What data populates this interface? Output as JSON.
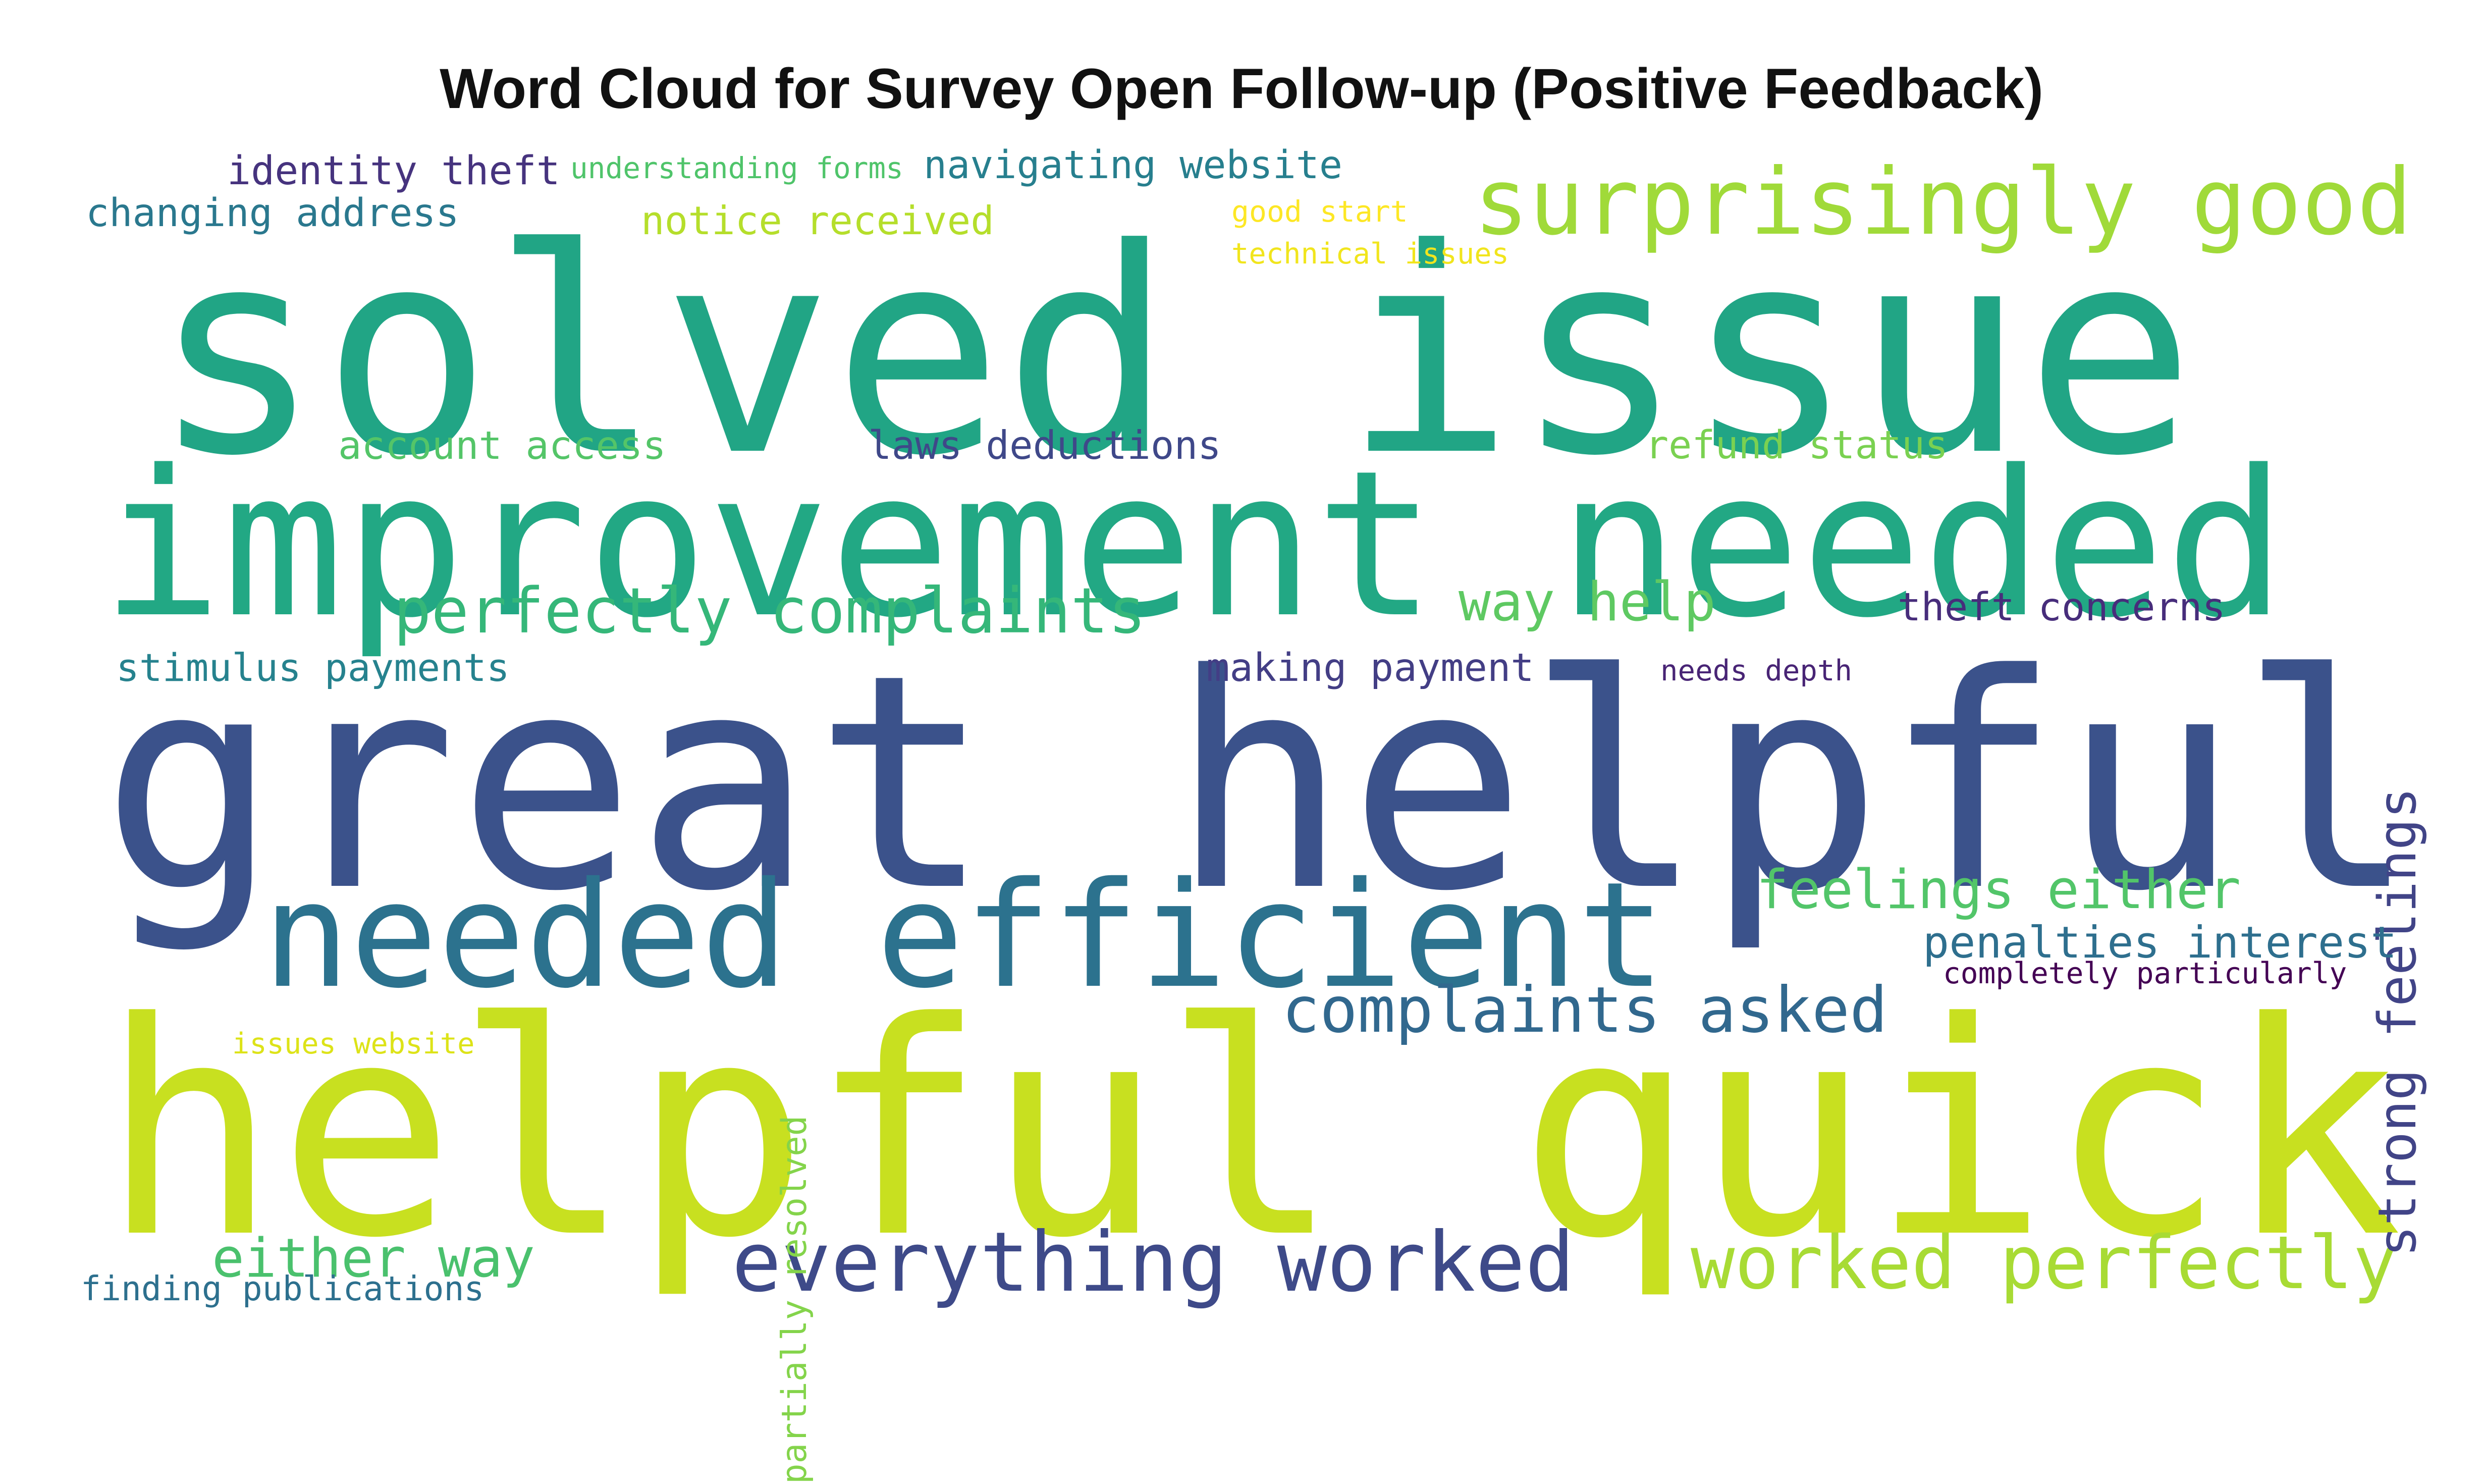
{
  "chart_data": {
    "type": "wordcloud",
    "title": "Word Cloud for Survey Open Follow-up (Positive Feedback)",
    "colormap": "viridis",
    "words": [
      {
        "text": "great helpful",
        "weight": 1.0,
        "color": "#3b528b"
      },
      {
        "text": "helpful quick",
        "weight": 1.0,
        "color": "#c8e020"
      },
      {
        "text": "solved issue",
        "weight": 0.9,
        "color": "#21a585"
      },
      {
        "text": "improvement needed",
        "weight": 0.78,
        "color": "#22a884"
      },
      {
        "text": "needed efficient",
        "weight": 0.47,
        "color": "#2c728e"
      },
      {
        "text": "everything worked",
        "weight": 0.32,
        "color": "#3e4a89"
      },
      {
        "text": "surprisingly good",
        "weight": 0.32,
        "color": "#a0da39"
      },
      {
        "text": "worked perfectly",
        "weight": 0.27,
        "color": "#a8db34"
      },
      {
        "text": "perfectly complaints",
        "weight": 0.25,
        "color": "#35b779"
      },
      {
        "text": "complaints asked",
        "weight": 0.25,
        "color": "#31688e"
      },
      {
        "text": "strong feelings",
        "weight": 0.22,
        "color": "#414487"
      },
      {
        "text": "way help",
        "weight": 0.2,
        "color": "#5ec962"
      },
      {
        "text": "feelings either",
        "weight": 0.2,
        "color": "#52c569"
      },
      {
        "text": "either way",
        "weight": 0.2,
        "color": "#4ac16d"
      },
      {
        "text": "navigating website",
        "weight": 0.17,
        "color": "#277f8e"
      },
      {
        "text": "identity theft",
        "weight": 0.17,
        "color": "#46337e"
      },
      {
        "text": "changing address",
        "weight": 0.17,
        "color": "#2a788e"
      },
      {
        "text": "notice received",
        "weight": 0.17,
        "color": "#b5de2b"
      },
      {
        "text": "account access",
        "weight": 0.16,
        "color": "#54c568"
      },
      {
        "text": "laws deductions",
        "weight": 0.16,
        "color": "#3f4889"
      },
      {
        "text": "refund status",
        "weight": 0.16,
        "color": "#7ad151"
      },
      {
        "text": "theft concerns",
        "weight": 0.16,
        "color": "#472d7b"
      },
      {
        "text": "stimulus payments",
        "weight": 0.16,
        "color": "#26828e"
      },
      {
        "text": "making payment",
        "weight": 0.16,
        "color": "#433e85"
      },
      {
        "text": "penalties interest",
        "weight": 0.16,
        "color": "#2e6f8e"
      },
      {
        "text": "finding publications",
        "weight": 0.13,
        "color": "#2d708e"
      },
      {
        "text": "partially resolved",
        "weight": 0.13,
        "color": "#84d44b"
      },
      {
        "text": "understanding forms",
        "weight": 0.1,
        "color": "#4fc46a"
      },
      {
        "text": "good start",
        "weight": 0.1,
        "color": "#fde725"
      },
      {
        "text": "technical issues",
        "weight": 0.1,
        "color": "#f1e51d"
      },
      {
        "text": "needs depth",
        "weight": 0.1,
        "color": "#482475"
      },
      {
        "text": "completely particularly",
        "weight": 0.1,
        "color": "#440154"
      },
      {
        "text": "issues website",
        "weight": 0.1,
        "color": "#dde318"
      }
    ]
  }
}
